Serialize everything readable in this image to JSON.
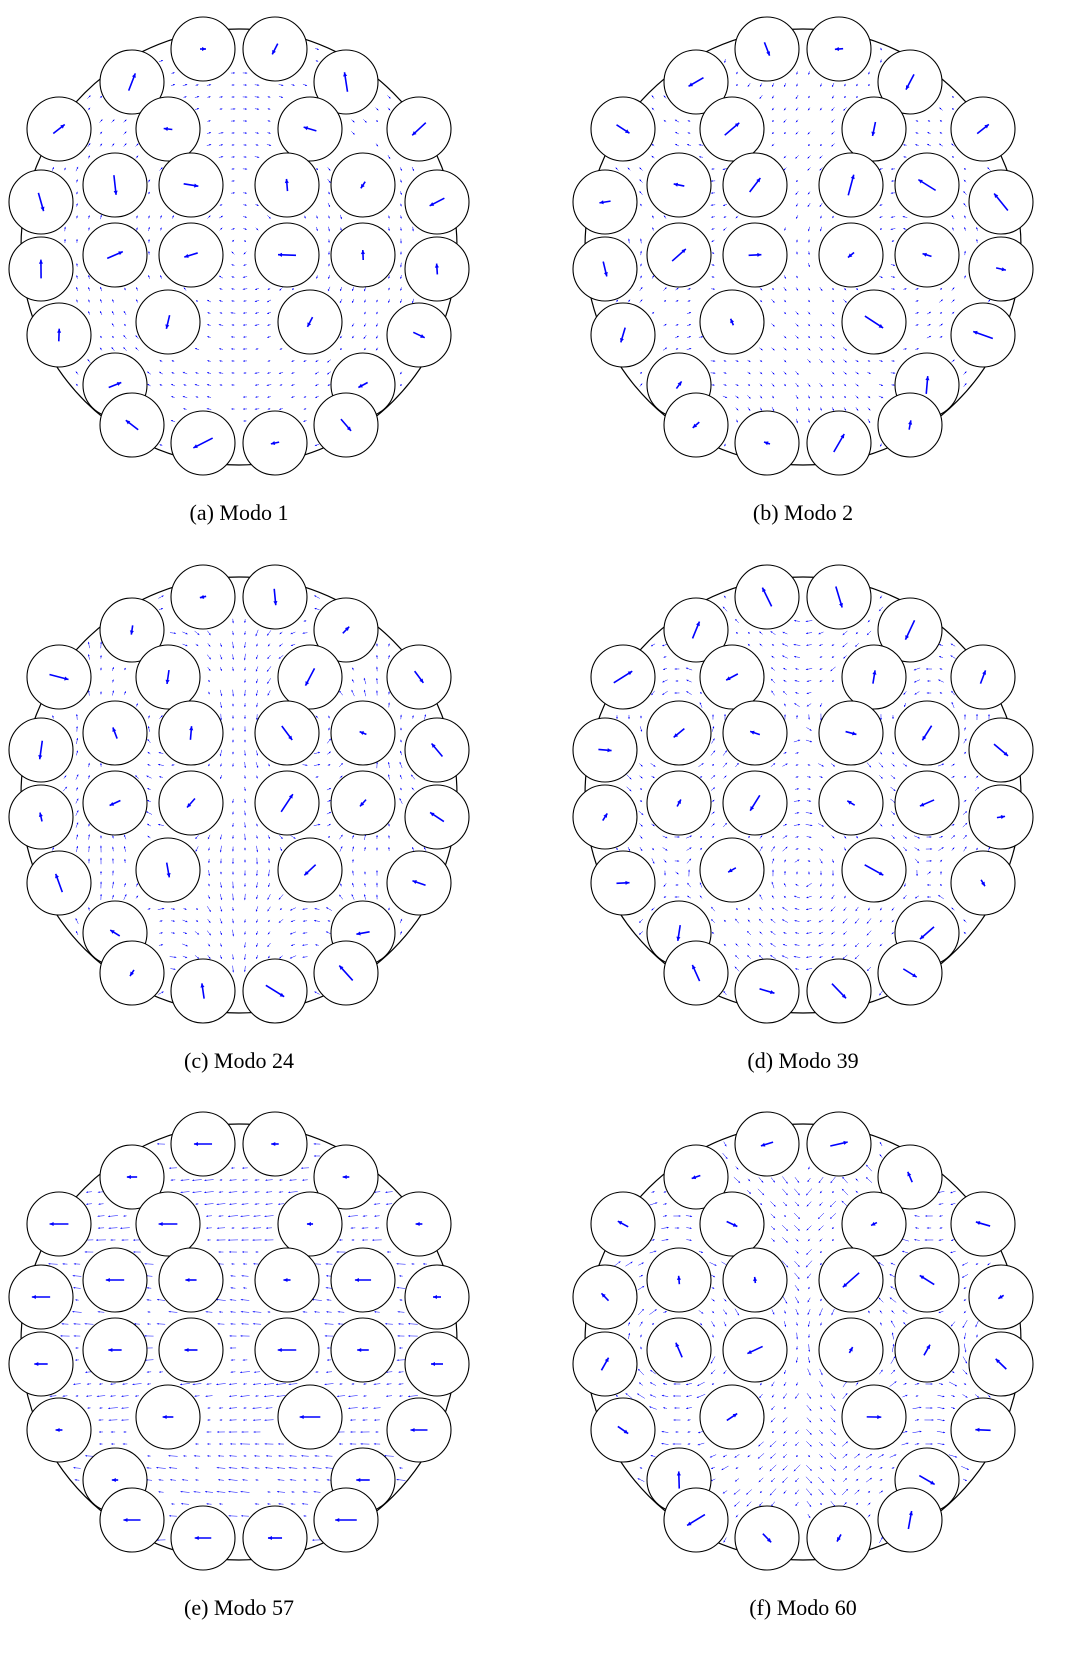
{
  "panels": [
    {
      "caption": "(a) Modo 1"
    },
    {
      "caption": "(b) Modo 2"
    },
    {
      "caption": "(c) Modo 24"
    },
    {
      "caption": "(d) Modo 39"
    },
    {
      "caption": "(e) Modo 57"
    },
    {
      "caption": "(f) Modo 60"
    }
  ],
  "colors": {
    "vector": "#0000ff",
    "outline": "#000000"
  }
}
